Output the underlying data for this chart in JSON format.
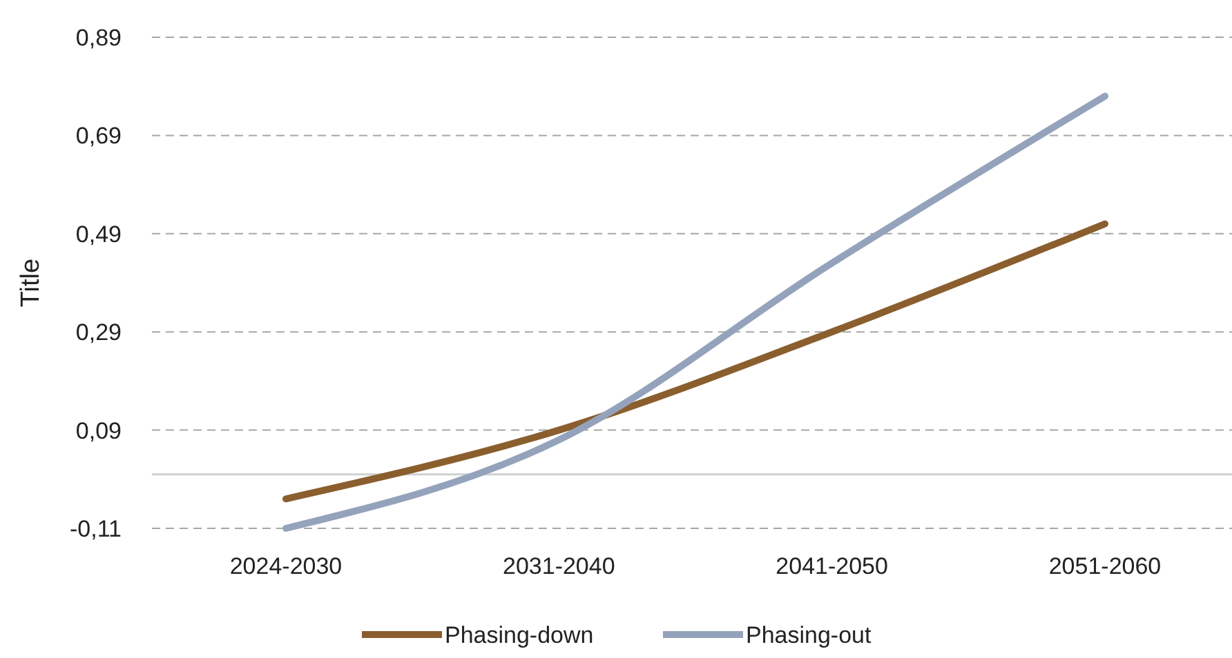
{
  "chart_data": {
    "type": "line",
    "ylabel": "Title",
    "categories": [
      "2024-2030",
      "2031-2040",
      "2041-2050",
      "2051-2060"
    ],
    "series": [
      {
        "name": "Phasing-down",
        "color": "#8b5e2e",
        "values": [
          -0.05,
          0.09,
          0.29,
          0.51
        ]
      },
      {
        "name": "Phasing-out",
        "color": "#94a3bb",
        "values": [
          -0.11,
          0.07,
          0.43,
          0.77
        ]
      }
    ],
    "ylim": [
      -0.11,
      0.89
    ],
    "yticks": [
      {
        "value": -0.11,
        "label": "-0,11"
      },
      {
        "value": 0.09,
        "label": "0,09"
      },
      {
        "value": 0.29,
        "label": "0,29"
      },
      {
        "value": 0.49,
        "label": "0,49"
      },
      {
        "value": 0.69,
        "label": "0,69"
      },
      {
        "value": 0.89,
        "label": "0,89"
      }
    ],
    "grid": "y",
    "legend": "bottom",
    "line_style": "solid",
    "marker": "none"
  }
}
